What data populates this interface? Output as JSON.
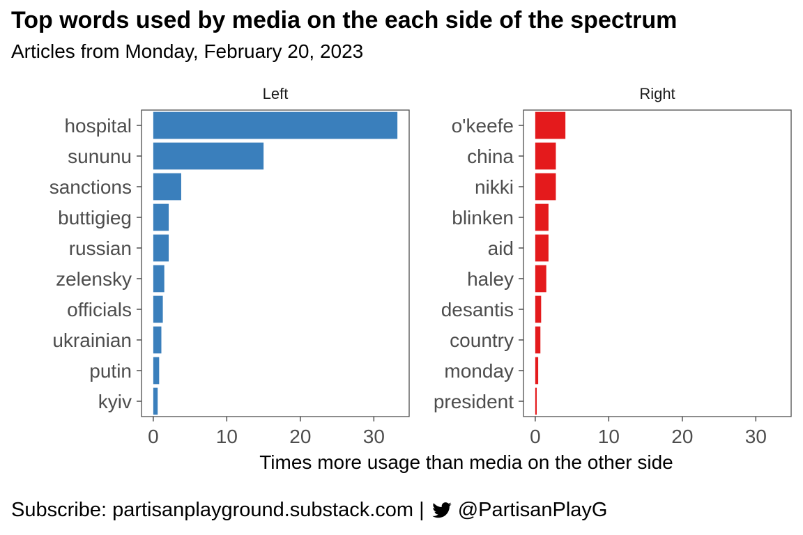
{
  "header": {
    "title": "Top words used by media on the each side of the spectrum",
    "subtitle": "Articles from Monday, February 20, 2023"
  },
  "footer": {
    "text": "Subscribe: partisanplayground.substack.com |",
    "handle": "@PartisanPlayG",
    "icon": "twitter-bird-icon"
  },
  "chart_data": {
    "type": "bar",
    "orientation": "horizontal",
    "xlabel": "Times more usage than media on the other side",
    "xlim": [
      -1.6,
      34.8
    ],
    "xticks": [
      0,
      10,
      20,
      30
    ],
    "grid": false,
    "facets": [
      {
        "name": "Left",
        "color": "#3a7fbc",
        "categories": [
          "hospital",
          "sununu",
          "sanctions",
          "buttigieg",
          "russian",
          "zelensky",
          "officials",
          "ukrainian",
          "putin",
          "kyiv"
        ],
        "values": [
          33.2,
          15.0,
          3.8,
          2.1,
          2.1,
          1.5,
          1.3,
          1.1,
          0.8,
          0.6
        ]
      },
      {
        "name": "Right",
        "color": "#e41a1c",
        "categories": [
          "o'keefe",
          "china",
          "nikki",
          "blinken",
          "aid",
          "haley",
          "desantis",
          "country",
          "monday",
          "president"
        ],
        "values": [
          4.1,
          2.8,
          2.8,
          1.8,
          1.8,
          1.5,
          0.8,
          0.7,
          0.4,
          0.2
        ]
      }
    ]
  }
}
